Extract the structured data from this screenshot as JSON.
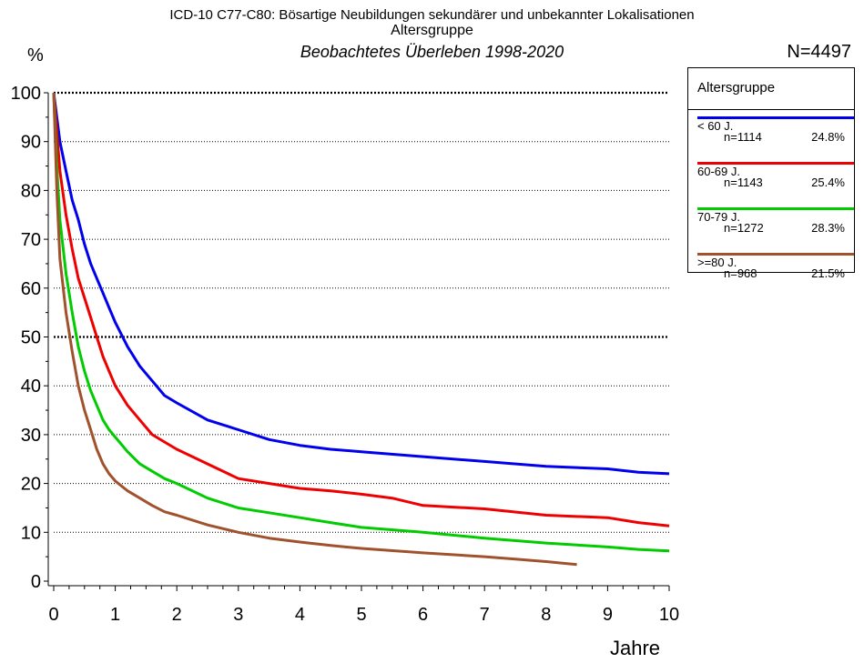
{
  "title_line1": "ICD-10 C77-C80: Bösartige Neubildungen sekundärer und unbekannter Lokalisationen",
  "title_line2": "Altersgruppe",
  "title_line3": "Beobachtetes Überleben 1998-2020",
  "y_unit": "%",
  "n_total": "N=4497",
  "legend_title": "Altersgruppe",
  "chart_data": {
    "type": "line",
    "xlabel": "Jahre",
    "ylabel": "%",
    "xlim": [
      0,
      10
    ],
    "ylim": [
      0,
      100
    ],
    "x_ticks": [
      "0",
      "1",
      "2",
      "3",
      "4",
      "5",
      "6",
      "7",
      "8",
      "9",
      "10"
    ],
    "y_ticks": [
      "0",
      "10",
      "20",
      "30",
      "40",
      "50",
      "60",
      "70",
      "80",
      "90",
      "100"
    ],
    "grid": "horizontal dotted; 50 and 100 bold",
    "legend_position": "right",
    "series": [
      {
        "name": "< 60 J.",
        "n": "n=1114",
        "pct": "24.8%",
        "color": "#0000ee",
        "points": [
          [
            0,
            100
          ],
          [
            0.1,
            90
          ],
          [
            0.2,
            84
          ],
          [
            0.3,
            78
          ],
          [
            0.4,
            74
          ],
          [
            0.5,
            69
          ],
          [
            0.6,
            65
          ],
          [
            0.7,
            62
          ],
          [
            0.8,
            59
          ],
          [
            0.9,
            56
          ],
          [
            1.0,
            53
          ],
          [
            1.2,
            48
          ],
          [
            1.4,
            44
          ],
          [
            1.6,
            41
          ],
          [
            1.8,
            38
          ],
          [
            2.0,
            36.5
          ],
          [
            2.5,
            33
          ],
          [
            3.0,
            31
          ],
          [
            3.5,
            29
          ],
          [
            4.0,
            27.8
          ],
          [
            4.5,
            27
          ],
          [
            5.0,
            26.5
          ],
          [
            6.0,
            25.5
          ],
          [
            7.0,
            24.5
          ],
          [
            8.0,
            23.5
          ],
          [
            9.0,
            23
          ],
          [
            9.5,
            22.3
          ],
          [
            10.0,
            22
          ]
        ]
      },
      {
        "name": "60-69 J.",
        "n": "n=1143",
        "pct": "25.4%",
        "color": "#ee0000",
        "points": [
          [
            0,
            100
          ],
          [
            0.1,
            84
          ],
          [
            0.2,
            75
          ],
          [
            0.3,
            68
          ],
          [
            0.4,
            62
          ],
          [
            0.5,
            58
          ],
          [
            0.6,
            54
          ],
          [
            0.7,
            50
          ],
          [
            0.8,
            46
          ],
          [
            0.9,
            43
          ],
          [
            1.0,
            40
          ],
          [
            1.2,
            36
          ],
          [
            1.4,
            33
          ],
          [
            1.6,
            30
          ],
          [
            1.8,
            28.5
          ],
          [
            2.0,
            27
          ],
          [
            2.5,
            24
          ],
          [
            3.0,
            21
          ],
          [
            3.5,
            20
          ],
          [
            4.0,
            19
          ],
          [
            4.5,
            18.5
          ],
          [
            5.0,
            17.8
          ],
          [
            5.5,
            17
          ],
          [
            6.0,
            15.5
          ],
          [
            7.0,
            14.8
          ],
          [
            8.0,
            13.5
          ],
          [
            9.0,
            13
          ],
          [
            9.5,
            12
          ],
          [
            10.0,
            11.3
          ]
        ]
      },
      {
        "name": "70-79 J.",
        "n": "n=1272",
        "pct": "28.3%",
        "color": "#00cc00",
        "points": [
          [
            0,
            100
          ],
          [
            0.05,
            85
          ],
          [
            0.1,
            74
          ],
          [
            0.2,
            63
          ],
          [
            0.3,
            55
          ],
          [
            0.4,
            48
          ],
          [
            0.5,
            43
          ],
          [
            0.6,
            39
          ],
          [
            0.7,
            36
          ],
          [
            0.8,
            33
          ],
          [
            0.9,
            31
          ],
          [
            1.0,
            29.5
          ],
          [
            1.2,
            26.5
          ],
          [
            1.4,
            24
          ],
          [
            1.6,
            22.5
          ],
          [
            1.8,
            21
          ],
          [
            2.0,
            20
          ],
          [
            2.5,
            17
          ],
          [
            3.0,
            15
          ],
          [
            3.5,
            14
          ],
          [
            4.0,
            13
          ],
          [
            4.5,
            12
          ],
          [
            5.0,
            11
          ],
          [
            6.0,
            10
          ],
          [
            7.0,
            8.8
          ],
          [
            8.0,
            7.8
          ],
          [
            9.0,
            7
          ],
          [
            9.5,
            6.5
          ],
          [
            10.0,
            6.2
          ]
        ]
      },
      {
        "name": ">=80 J.",
        "n": "n=968",
        "pct": "21.5%",
        "color": "#a0522d",
        "points": [
          [
            0,
            100
          ],
          [
            0.05,
            80
          ],
          [
            0.1,
            66
          ],
          [
            0.2,
            55
          ],
          [
            0.3,
            47
          ],
          [
            0.4,
            40
          ],
          [
            0.5,
            35
          ],
          [
            0.6,
            31
          ],
          [
            0.7,
            27
          ],
          [
            0.8,
            24
          ],
          [
            0.9,
            22
          ],
          [
            1.0,
            20.5
          ],
          [
            1.2,
            18.5
          ],
          [
            1.4,
            17
          ],
          [
            1.6,
            15.5
          ],
          [
            1.8,
            14.2
          ],
          [
            2.0,
            13.5
          ],
          [
            2.5,
            11.5
          ],
          [
            3.0,
            10
          ],
          [
            3.5,
            8.8
          ],
          [
            4.0,
            8
          ],
          [
            4.5,
            7.3
          ],
          [
            5.0,
            6.7
          ],
          [
            6.0,
            5.8
          ],
          [
            7.0,
            5
          ],
          [
            7.5,
            4.5
          ],
          [
            8.0,
            4
          ],
          [
            8.5,
            3.4
          ]
        ]
      }
    ]
  }
}
